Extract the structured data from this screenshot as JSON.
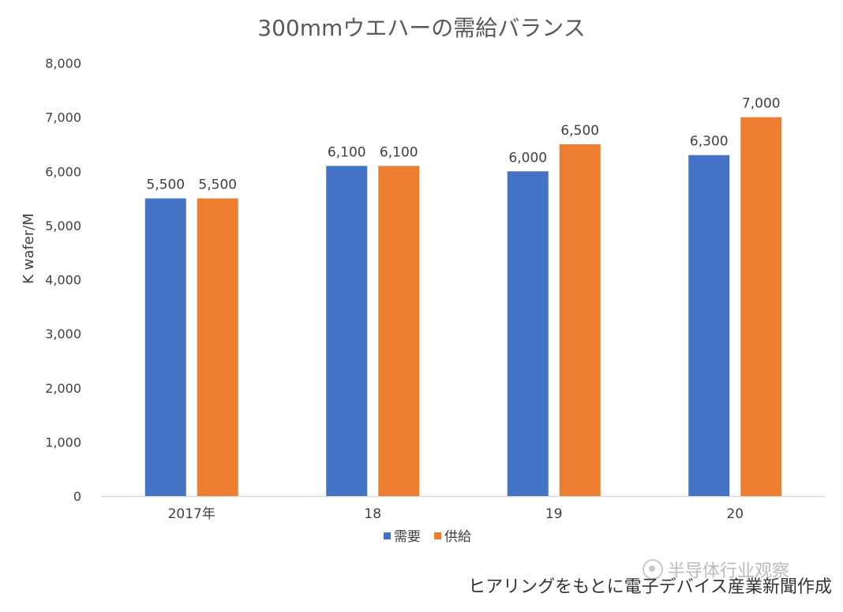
{
  "chart_data": {
    "type": "bar",
    "title": "300mmウエハーの需給バランス",
    "ylabel": "K wafer/M",
    "xlabel": "",
    "categories": [
      "2017年",
      "18",
      "19",
      "20"
    ],
    "series": [
      {
        "name": "需要",
        "values": [
          5500,
          6100,
          6000,
          6300
        ],
        "labels": [
          "5,500",
          "6,100",
          "6,000",
          "6,300"
        ],
        "color": "#4472C4"
      },
      {
        "name": "供給",
        "values": [
          5500,
          6100,
          6500,
          7000
        ],
        "labels": [
          "5,500",
          "6,100",
          "6,500",
          "7,000"
        ],
        "color": "#ED7D31"
      }
    ],
    "ylim": [
      0,
      8000
    ],
    "yticks": [
      0,
      1000,
      2000,
      3000,
      4000,
      5000,
      6000,
      7000,
      8000
    ],
    "ytick_labels": [
      "0",
      "1,000",
      "2,000",
      "3,000",
      "4,000",
      "5,000",
      "6,000",
      "7,000",
      "8,000"
    ],
    "grid": false,
    "legend": "bottom"
  },
  "source_note": "ヒアリングをもとに電子デバイス産業新聞作成",
  "watermark": "半导体行业观察"
}
